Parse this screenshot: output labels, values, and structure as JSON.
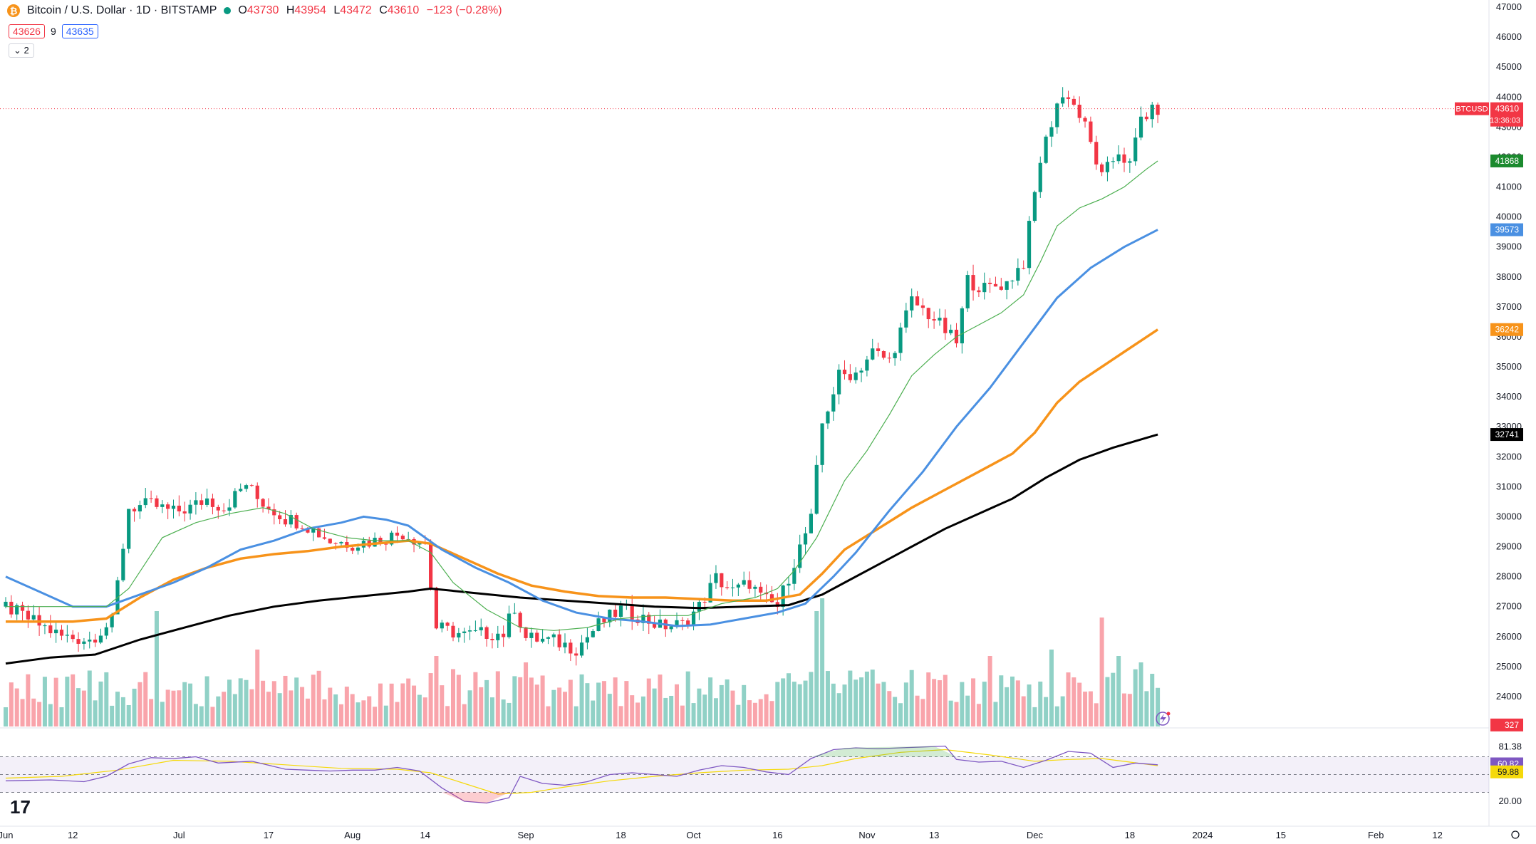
{
  "header": {
    "symbol_title": "Bitcoin / U.S. Dollar · 1D · BITSTAMP",
    "ohlc": [
      {
        "key": "O",
        "value": "43730"
      },
      {
        "key": "H",
        "value": "43954"
      },
      {
        "key": "L",
        "value": "43472"
      },
      {
        "key": "C",
        "value": "43610"
      }
    ],
    "change": "−123 (−0.28%)",
    "bid": "43626",
    "spread": "9",
    "ask": "43635",
    "indicators_toggle": "2"
  },
  "price_axis": {
    "ticks": [
      47000,
      46000,
      45000,
      44000,
      43000,
      42000,
      41000,
      40000,
      39000,
      38000,
      37000,
      36000,
      35000,
      34000,
      33000,
      32000,
      31000,
      30000,
      29000,
      28000,
      27000,
      26000,
      25000,
      24000,
      23000
    ]
  },
  "price_tags": [
    {
      "label": "BTCUSD",
      "value": "43610",
      "sub": "13:36:03",
      "color": "#f23645",
      "y": 43610
    },
    {
      "label": "",
      "value": "41868",
      "color": "#1b8a2e",
      "y": 41868
    },
    {
      "label": "",
      "value": "39573",
      "color": "#4a90e2",
      "y": 39573
    },
    {
      "label": "",
      "value": "36242",
      "color": "#f7931a",
      "y": 36242
    },
    {
      "label": "",
      "value": "32741",
      "color": "#000000",
      "y": 32741
    },
    {
      "label": "",
      "value": "327",
      "color": "#f23645",
      "y": 23050
    }
  ],
  "rsi_axis": {
    "ticks": [
      "81.38",
      "53.63",
      "20.00"
    ],
    "tags": [
      {
        "value": "60.82",
        "color": "#7e57c2"
      },
      {
        "value": "59.88",
        "color": "#f5d90a"
      }
    ]
  },
  "time_axis": {
    "labels": [
      {
        "text": "Jun",
        "day": 0
      },
      {
        "text": "12",
        "day": 12
      },
      {
        "text": "Jul",
        "day": 31
      },
      {
        "text": "17",
        "day": 47
      },
      {
        "text": "Aug",
        "day": 62
      },
      {
        "text": "14",
        "day": 75
      },
      {
        "text": "Sep",
        "day": 93
      },
      {
        "text": "18",
        "day": 110
      },
      {
        "text": "Oct",
        "day": 123
      },
      {
        "text": "16",
        "day": 138
      },
      {
        "text": "Nov",
        "day": 154
      },
      {
        "text": "13",
        "day": 166
      },
      {
        "text": "Dec",
        "day": 184
      },
      {
        "text": "18",
        "day": 201
      },
      {
        "text": "2024",
        "day": 214
      },
      {
        "text": "15",
        "day": 228
      },
      {
        "text": "Feb",
        "day": 245
      },
      {
        "text": "12",
        "day": 256
      }
    ]
  },
  "chart_data": {
    "type": "line",
    "ylim": [
      23000,
      47000
    ],
    "anchor_points": {
      "close": [
        [
          0,
          27000
        ],
        [
          5,
          26500
        ],
        [
          10,
          26000
        ],
        [
          15,
          25900
        ],
        [
          19,
          26500
        ],
        [
          22,
          30300
        ],
        [
          26,
          30400
        ],
        [
          30,
          30150
        ],
        [
          33,
          30300
        ],
        [
          36,
          30600
        ],
        [
          39,
          30300
        ],
        [
          43,
          31100
        ],
        [
          45,
          30600
        ],
        [
          50,
          29950
        ],
        [
          53,
          29800
        ],
        [
          58,
          29200
        ],
        [
          62,
          29100
        ],
        [
          66,
          29200
        ],
        [
          71,
          29450
        ],
        [
          75,
          29100
        ],
        [
          77,
          26300
        ],
        [
          82,
          26050
        ],
        [
          85,
          26100
        ],
        [
          89,
          26100
        ],
        [
          91,
          27000
        ],
        [
          93,
          25950
        ],
        [
          98,
          25850
        ],
        [
          102,
          25600
        ],
        [
          106,
          26400
        ],
        [
          110,
          26900
        ],
        [
          113,
          26700
        ],
        [
          117,
          26350
        ],
        [
          121,
          26400
        ],
        [
          124,
          27000
        ],
        [
          127,
          27950
        ],
        [
          130,
          27500
        ],
        [
          133,
          27800
        ],
        [
          135,
          27300
        ],
        [
          138,
          27000
        ],
        [
          141,
          28500
        ],
        [
          144,
          29900
        ],
        [
          146,
          33100
        ],
        [
          149,
          34700
        ],
        [
          152,
          34800
        ],
        [
          155,
          35500
        ],
        [
          158,
          35200
        ],
        [
          162,
          37200
        ],
        [
          166,
          36600
        ],
        [
          170,
          35800
        ],
        [
          172,
          37900
        ],
        [
          175,
          37600
        ],
        [
          179,
          37800
        ],
        [
          182,
          38500
        ],
        [
          185,
          41900
        ],
        [
          188,
          43800
        ],
        [
          190,
          44100
        ],
        [
          193,
          43000
        ],
        [
          196,
          41300
        ],
        [
          199,
          42200
        ],
        [
          201,
          41700
        ],
        [
          203,
          43300
        ],
        [
          206,
          43600
        ]
      ],
      "ma20": [
        [
          0,
          27000
        ],
        [
          10,
          27000
        ],
        [
          18,
          27000
        ],
        [
          22,
          27600
        ],
        [
          28,
          29300
        ],
        [
          34,
          29800
        ],
        [
          40,
          30100
        ],
        [
          46,
          30300
        ],
        [
          50,
          30100
        ],
        [
          55,
          29600
        ],
        [
          61,
          29300
        ],
        [
          66,
          29200
        ],
        [
          72,
          29200
        ],
        [
          76,
          28800
        ],
        [
          80,
          27800
        ],
        [
          86,
          26900
        ],
        [
          92,
          26300
        ],
        [
          98,
          26200
        ],
        [
          104,
          26300
        ],
        [
          110,
          26600
        ],
        [
          116,
          26700
        ],
        [
          122,
          26700
        ],
        [
          128,
          27100
        ],
        [
          134,
          27300
        ],
        [
          138,
          27600
        ],
        [
          141,
          28200
        ],
        [
          145,
          29300
        ],
        [
          150,
          31200
        ],
        [
          154,
          32200
        ],
        [
          158,
          33400
        ],
        [
          162,
          34700
        ],
        [
          166,
          35400
        ],
        [
          170,
          36000
        ],
        [
          174,
          36400
        ],
        [
          178,
          36800
        ],
        [
          182,
          37400
        ],
        [
          185,
          38500
        ],
        [
          188,
          39700
        ],
        [
          192,
          40300
        ],
        [
          196,
          40600
        ],
        [
          200,
          41000
        ],
        [
          204,
          41600
        ],
        [
          206,
          41868
        ]
      ],
      "ma50": [
        [
          0,
          28000
        ],
        [
          6,
          27500
        ],
        [
          12,
          27000
        ],
        [
          18,
          27000
        ],
        [
          24,
          27400
        ],
        [
          30,
          27800
        ],
        [
          36,
          28300
        ],
        [
          42,
          28900
        ],
        [
          48,
          29200
        ],
        [
          54,
          29600
        ],
        [
          60,
          29800
        ],
        [
          64,
          30000
        ],
        [
          68,
          29900
        ],
        [
          72,
          29700
        ],
        [
          78,
          28900
        ],
        [
          84,
          28300
        ],
        [
          90,
          27800
        ],
        [
          96,
          27200
        ],
        [
          102,
          26800
        ],
        [
          108,
          26600
        ],
        [
          114,
          26500
        ],
        [
          120,
          26350
        ],
        [
          126,
          26400
        ],
        [
          132,
          26600
        ],
        [
          138,
          26800
        ],
        [
          143,
          27100
        ],
        [
          148,
          28000
        ],
        [
          152,
          28800
        ],
        [
          158,
          30200
        ],
        [
          164,
          31500
        ],
        [
          170,
          33000
        ],
        [
          176,
          34300
        ],
        [
          182,
          35800
        ],
        [
          188,
          37300
        ],
        [
          194,
          38300
        ],
        [
          200,
          39000
        ],
        [
          206,
          39573
        ]
      ],
      "ma100": [
        [
          0,
          26500
        ],
        [
          12,
          26500
        ],
        [
          18,
          26600
        ],
        [
          24,
          27300
        ],
        [
          30,
          27900
        ],
        [
          36,
          28300
        ],
        [
          42,
          28600
        ],
        [
          48,
          28750
        ],
        [
          54,
          28850
        ],
        [
          60,
          29000
        ],
        [
          66,
          29100
        ],
        [
          72,
          29200
        ],
        [
          76,
          29100
        ],
        [
          82,
          28600
        ],
        [
          88,
          28100
        ],
        [
          94,
          27700
        ],
        [
          100,
          27500
        ],
        [
          106,
          27350
        ],
        [
          112,
          27300
        ],
        [
          118,
          27300
        ],
        [
          124,
          27250
        ],
        [
          130,
          27200
        ],
        [
          136,
          27200
        ],
        [
          142,
          27400
        ],
        [
          146,
          28100
        ],
        [
          150,
          28900
        ],
        [
          156,
          29600
        ],
        [
          162,
          30300
        ],
        [
          168,
          30900
        ],
        [
          174,
          31500
        ],
        [
          180,
          32100
        ],
        [
          184,
          32800
        ],
        [
          188,
          33800
        ],
        [
          192,
          34500
        ],
        [
          196,
          35000
        ],
        [
          200,
          35500
        ],
        [
          206,
          36242
        ]
      ],
      "ma200": [
        [
          0,
          25100
        ],
        [
          8,
          25300
        ],
        [
          16,
          25400
        ],
        [
          24,
          25900
        ],
        [
          32,
          26300
        ],
        [
          40,
          26700
        ],
        [
          48,
          27000
        ],
        [
          56,
          27200
        ],
        [
          64,
          27350
        ],
        [
          72,
          27500
        ],
        [
          76,
          27600
        ],
        [
          84,
          27450
        ],
        [
          92,
          27300
        ],
        [
          100,
          27200
        ],
        [
          108,
          27100
        ],
        [
          116,
          27000
        ],
        [
          124,
          26950
        ],
        [
          132,
          27000
        ],
        [
          140,
          27050
        ],
        [
          146,
          27400
        ],
        [
          150,
          27800
        ],
        [
          156,
          28400
        ],
        [
          162,
          29000
        ],
        [
          168,
          29600
        ],
        [
          174,
          30100
        ],
        [
          180,
          30600
        ],
        [
          186,
          31300
        ],
        [
          192,
          31900
        ],
        [
          198,
          32300
        ],
        [
          206,
          32741
        ]
      ],
      "rsi": [
        [
          0,
          43
        ],
        [
          8,
          44
        ],
        [
          14,
          42
        ],
        [
          18,
          48
        ],
        [
          22,
          62
        ],
        [
          26,
          69
        ],
        [
          30,
          68
        ],
        [
          34,
          70
        ],
        [
          38,
          63
        ],
        [
          44,
          65
        ],
        [
          50,
          56
        ],
        [
          54,
          55
        ],
        [
          58,
          54
        ],
        [
          62,
          55
        ],
        [
          66,
          55
        ],
        [
          70,
          58
        ],
        [
          74,
          54
        ],
        [
          78,
          35
        ],
        [
          82,
          20
        ],
        [
          86,
          18
        ],
        [
          90,
          24
        ],
        [
          92,
          48
        ],
        [
          96,
          40
        ],
        [
          100,
          38
        ],
        [
          104,
          42
        ],
        [
          108,
          50
        ],
        [
          112,
          52
        ],
        [
          116,
          50
        ],
        [
          120,
          48
        ],
        [
          124,
          55
        ],
        [
          128,
          60
        ],
        [
          132,
          58
        ],
        [
          136,
          53
        ],
        [
          140,
          50
        ],
        [
          144,
          68
        ],
        [
          148,
          78
        ],
        [
          152,
          80
        ],
        [
          156,
          79
        ],
        [
          160,
          80
        ],
        [
          164,
          81
        ],
        [
          168,
          82
        ],
        [
          170,
          67
        ],
        [
          174,
          64
        ],
        [
          178,
          65
        ],
        [
          182,
          58
        ],
        [
          186,
          66
        ],
        [
          190,
          76
        ],
        [
          194,
          74
        ],
        [
          198,
          58
        ],
        [
          202,
          63
        ],
        [
          206,
          61
        ]
      ],
      "rsi_ma": [
        [
          0,
          46
        ],
        [
          10,
          48
        ],
        [
          20,
          55
        ],
        [
          30,
          66
        ],
        [
          40,
          65
        ],
        [
          50,
          61
        ],
        [
          60,
          57
        ],
        [
          70,
          56
        ],
        [
          76,
          52
        ],
        [
          82,
          40
        ],
        [
          88,
          28
        ],
        [
          94,
          30
        ],
        [
          100,
          36
        ],
        [
          108,
          43
        ],
        [
          116,
          48
        ],
        [
          124,
          52
        ],
        [
          132,
          55
        ],
        [
          140,
          56
        ],
        [
          146,
          60
        ],
        [
          152,
          68
        ],
        [
          160,
          75
        ],
        [
          168,
          78
        ],
        [
          176,
          72
        ],
        [
          184,
          65
        ],
        [
          190,
          67
        ],
        [
          196,
          68
        ],
        [
          206,
          60
        ]
      ]
    },
    "rsi_levels": {
      "upper": 70,
      "mid": 50,
      "lower": 30
    },
    "volume_spikes": [
      [
        27,
        0.9
      ],
      [
        45,
        0.6
      ],
      [
        77,
        0.55
      ],
      [
        93,
        0.5
      ],
      [
        146,
        1.0
      ],
      [
        145,
        0.9
      ],
      [
        176,
        0.55
      ],
      [
        187,
        0.6
      ],
      [
        196,
        0.85
      ],
      [
        199,
        0.55
      ],
      [
        203,
        0.5
      ]
    ]
  }
}
